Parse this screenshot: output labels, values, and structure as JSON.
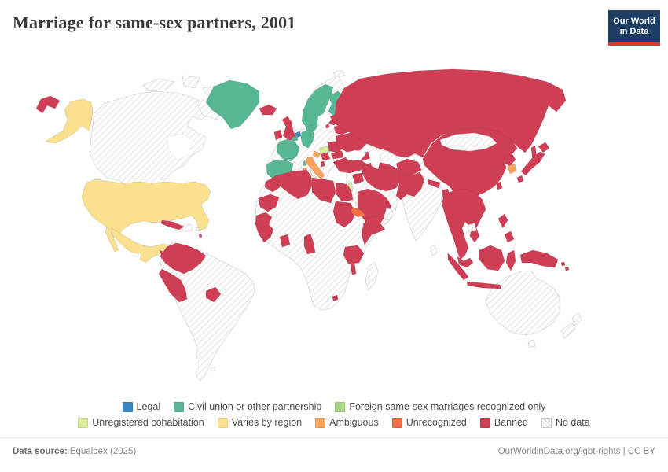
{
  "header": {
    "title": "Marriage for same-sex partners, 2001",
    "logo": {
      "line1": "Our World",
      "line2": "in Data",
      "bg_color": "#1d3d63",
      "bar_color": "#d93a34"
    }
  },
  "legend": {
    "rows": [
      [
        "legal",
        "civil_union",
        "foreign_recognized"
      ],
      [
        "unregistered_cohabitation",
        "varies_by_region",
        "ambiguous",
        "unrecognized",
        "banned",
        "no_data"
      ]
    ]
  },
  "map": {
    "palette": {
      "legal": {
        "label": "Legal",
        "color": "#3a87c2"
      },
      "civil_union": {
        "label": "Civil union or other partnership",
        "color": "#57b795"
      },
      "foreign_recognized": {
        "label": "Foreign same-sex marriages recognized only",
        "color": "#a9d588"
      },
      "unregistered_cohabitation": {
        "label": "Unregistered cohabitation",
        "color": "#dcee9d"
      },
      "varies_by_region": {
        "label": "Varies by region",
        "color": "#fbe08f"
      },
      "ambiguous": {
        "label": "Ambiguous",
        "color": "#f8a45c"
      },
      "unrecognized": {
        "label": "Unrecognized",
        "color": "#f26c44"
      },
      "banned": {
        "label": "Banned",
        "color": "#ce3f55"
      },
      "no_data": {
        "label": "No data",
        "color": "#ffffff"
      }
    },
    "countries": {
      "legal": [
        "Netherlands"
      ],
      "civil_union": [
        "Greenland",
        "Norway",
        "Sweden",
        "Finland",
        "Denmark",
        "Germany",
        "France",
        "Belgium",
        "Spain",
        "Portugal"
      ],
      "foreign_recognized": [],
      "unregistered_cohabitation": [
        "Hungary",
        "Israel"
      ],
      "varies_by_region": [
        "United States",
        "Mexico"
      ],
      "ambiguous": [
        "Italy",
        "Croatia",
        "South Korea"
      ],
      "unrecognized": [
        "Eritrea"
      ],
      "banned": [
        "Russia",
        "China",
        "Japan",
        "North Korea",
        "Taiwan",
        "Mongolia-neighbors",
        "Turkey",
        "Iran",
        "Afghanistan",
        "Pakistan",
        "Nepal",
        "Bangladesh",
        "Myanmar",
        "Thailand",
        "Vietnam",
        "Laos",
        "Malaysia",
        "Indonesia",
        "Philippines",
        "Papua New Guinea",
        "Solomon Islands",
        "Saudi Arabia",
        "Yemen",
        "Syria",
        "Egypt",
        "Libya",
        "Algeria",
        "Morocco",
        "Mauritania",
        "Senegal",
        "Guinea",
        "Sierra Leone",
        "Liberia",
        "Ghana",
        "Togo",
        "Cameroon",
        "Sudan",
        "Somalia",
        "Tanzania",
        "Malawi",
        "Lesotho",
        "United Kingdom",
        "Ireland",
        "Iceland",
        "Ukraine",
        "Belarus",
        "Baltic states",
        "Romania",
        "Bulgaria",
        "Serbia",
        "Albania",
        "Georgia",
        "Azerbaijan",
        "Cuba",
        "Guatemala",
        "Honduras",
        "Nicaragua",
        "Colombia",
        "Venezuela",
        "Peru",
        "Paraguay"
      ],
      "no_data": [
        "Canada",
        "Brazil",
        "Argentina",
        "Chile",
        "Bolivia",
        "Ecuador",
        "Australia",
        "New Zealand",
        "India",
        "Kazakhstan",
        "Mongolia",
        "Central Asia",
        "Iraq",
        "Jordan",
        "Oman",
        "Ethiopia",
        "Kenya",
        "South Africa",
        "Madagascar",
        "Poland",
        "Czechia",
        "Austria",
        "Switzerland",
        "Greece",
        "Cambodia",
        "Sri Lanka"
      ]
    }
  },
  "footer": {
    "source_label": "Data source:",
    "source_value": " Equaldex (2025)",
    "right_text": "OurWorldinData.org/lgbt-rights | CC BY"
  }
}
